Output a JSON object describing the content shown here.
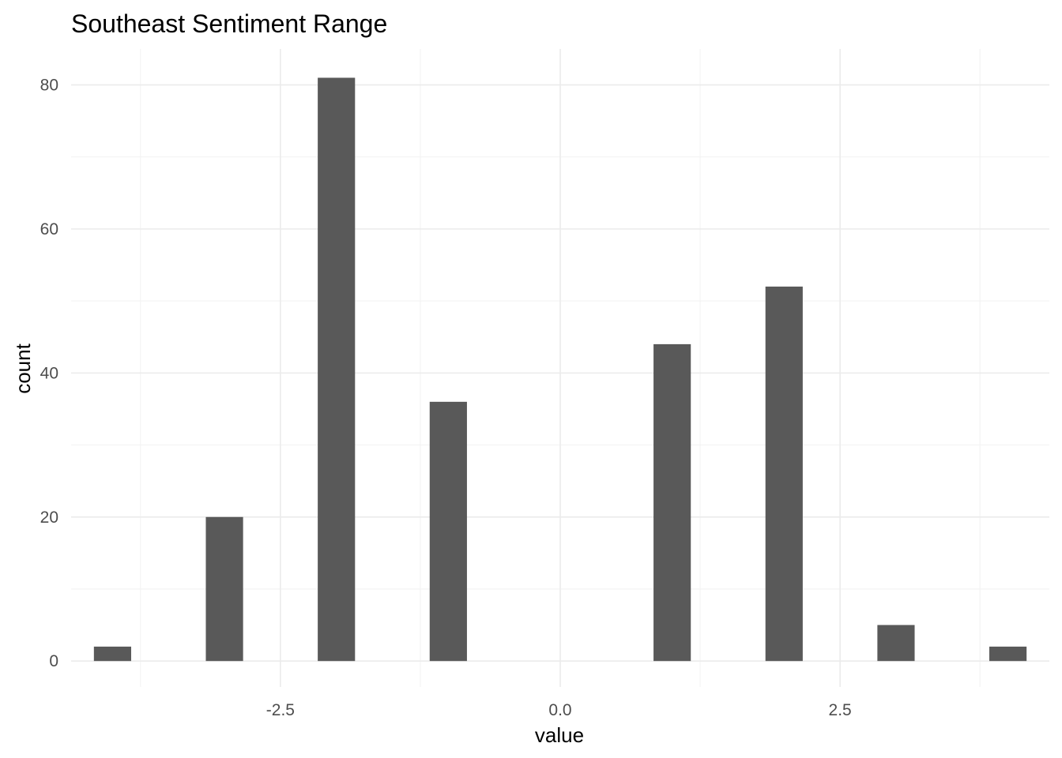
{
  "chart_data": {
    "type": "bar",
    "title": "Southeast Sentiment Range",
    "xlabel": "value",
    "ylabel": "count",
    "x": [
      -4,
      -3,
      -2,
      -1,
      1,
      2,
      3,
      4
    ],
    "values": [
      2,
      20,
      81,
      36,
      44,
      52,
      5,
      2
    ],
    "bar_color": "#595959",
    "xlim": [
      -4.37,
      4.37
    ],
    "ylim": [
      -3.6,
      85
    ],
    "x_ticks": [
      -2.5,
      0.0,
      2.5
    ],
    "x_tick_labels": [
      "-2.5",
      "0.0",
      "2.5"
    ],
    "x_minor_ticks": [
      -3.75,
      -1.25,
      1.25,
      3.75
    ],
    "y_ticks": [
      0,
      20,
      40,
      60,
      80
    ],
    "y_tick_labels": [
      "0",
      "20",
      "40",
      "60",
      "80"
    ],
    "y_minor_ticks": [
      10,
      30,
      50,
      70
    ],
    "grid": true,
    "bar_width": 0.333
  }
}
